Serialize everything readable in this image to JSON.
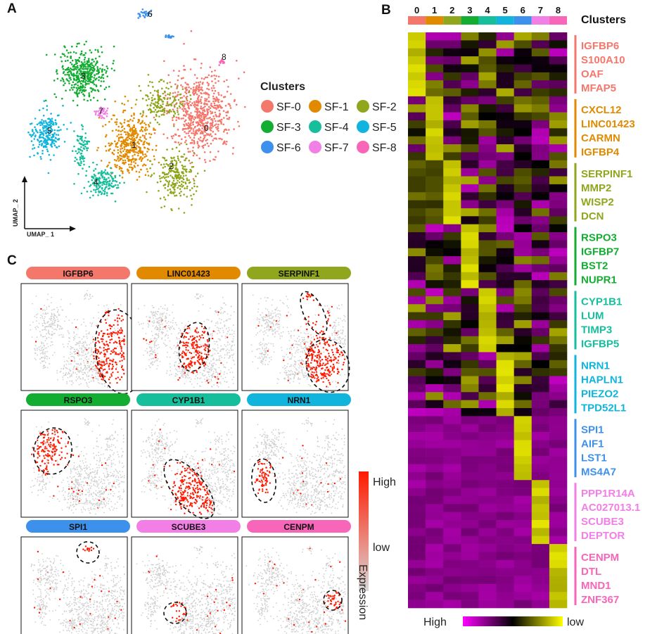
{
  "panels": {
    "a": "A",
    "b": "B",
    "c": "C"
  },
  "colors": {
    "SF-0": "#F4776C",
    "SF-1": "#E18A00",
    "SF-2": "#8FA61D",
    "SF-3": "#13AD32",
    "SF-4": "#16BE9C",
    "SF-5": "#11B4DD",
    "SF-6": "#3D91EC",
    "SF-7": "#F27FE5",
    "SF-8": "#F766B9"
  },
  "umap": {
    "xlabel": "UMAP_ 1",
    "ylabel": "UMAP_ 2",
    "legend_title": "Clusters",
    "legend": [
      "SF-0",
      "SF-1",
      "SF-2",
      "SF-3",
      "SF-4",
      "SF-5",
      "SF-6",
      "SF-7",
      "SF-8"
    ],
    "cluster_labels": [
      "0",
      "1",
      "2",
      "3",
      "4",
      "5",
      "6",
      "7",
      "8"
    ]
  },
  "chart_data": {
    "type": "heatmap",
    "title": "Clusters",
    "columns": [
      "0",
      "1",
      "2",
      "3",
      "4",
      "5",
      "6",
      "7",
      "8"
    ],
    "color_scale": {
      "high_label": "High",
      "low_label": "low",
      "high_color": "#FF00FF",
      "mid_color": "#000000",
      "low_color": "#FFFF00"
    },
    "gene_groups": [
      {
        "cluster": "SF-0",
        "genes": [
          "IGFBP6",
          "S100A10",
          "OAF",
          "MFAP5"
        ]
      },
      {
        "cluster": "SF-1",
        "genes": [
          "CXCL12",
          "LINC01423",
          "CARMN",
          "IGFBP4"
        ]
      },
      {
        "cluster": "SF-2",
        "genes": [
          "SERPINF1",
          "MMP2",
          "WISP2",
          "DCN"
        ]
      },
      {
        "cluster": "SF-3",
        "genes": [
          "RSPO3",
          "IGFBP7",
          "BST2",
          "NUPR1"
        ]
      },
      {
        "cluster": "SF-4",
        "genes": [
          "CYP1B1",
          "LUM",
          "TIMP3",
          "IGFBP5"
        ]
      },
      {
        "cluster": "SF-5",
        "genes": [
          "NRN1",
          "HAPLN1",
          "PIEZO2",
          "TPD52L1"
        ]
      },
      {
        "cluster": "SF-6",
        "genes": [
          "SPI1",
          "AIF1",
          "LST1",
          "MS4A7"
        ]
      },
      {
        "cluster": "SF-7",
        "genes": [
          "PPP1R14A",
          "AC027013.1",
          "SCUBE3",
          "DEPTOR"
        ]
      },
      {
        "cluster": "SF-8",
        "genes": [
          "CENPM",
          "DTL",
          "MND1",
          "ZNF367"
        ]
      }
    ]
  },
  "feature_plots": [
    {
      "gene": "IGFBP6",
      "cluster": "SF-0"
    },
    {
      "gene": "LINC01423",
      "cluster": "SF-1"
    },
    {
      "gene": "SERPINF1",
      "cluster": "SF-2"
    },
    {
      "gene": "RSPO3",
      "cluster": "SF-3"
    },
    {
      "gene": "CYP1B1",
      "cluster": "SF-4"
    },
    {
      "gene": "NRN1",
      "cluster": "SF-5"
    },
    {
      "gene": "SPI1",
      "cluster": "SF-6"
    },
    {
      "gene": "SCUBE3",
      "cluster": "SF-7"
    },
    {
      "gene": "CENPM",
      "cluster": "SF-8"
    }
  ],
  "expression_legend": {
    "high": "High",
    "low": "low",
    "title": "Expression",
    "high_color": "#FF1A00",
    "low_color": "#D9D9D9"
  }
}
